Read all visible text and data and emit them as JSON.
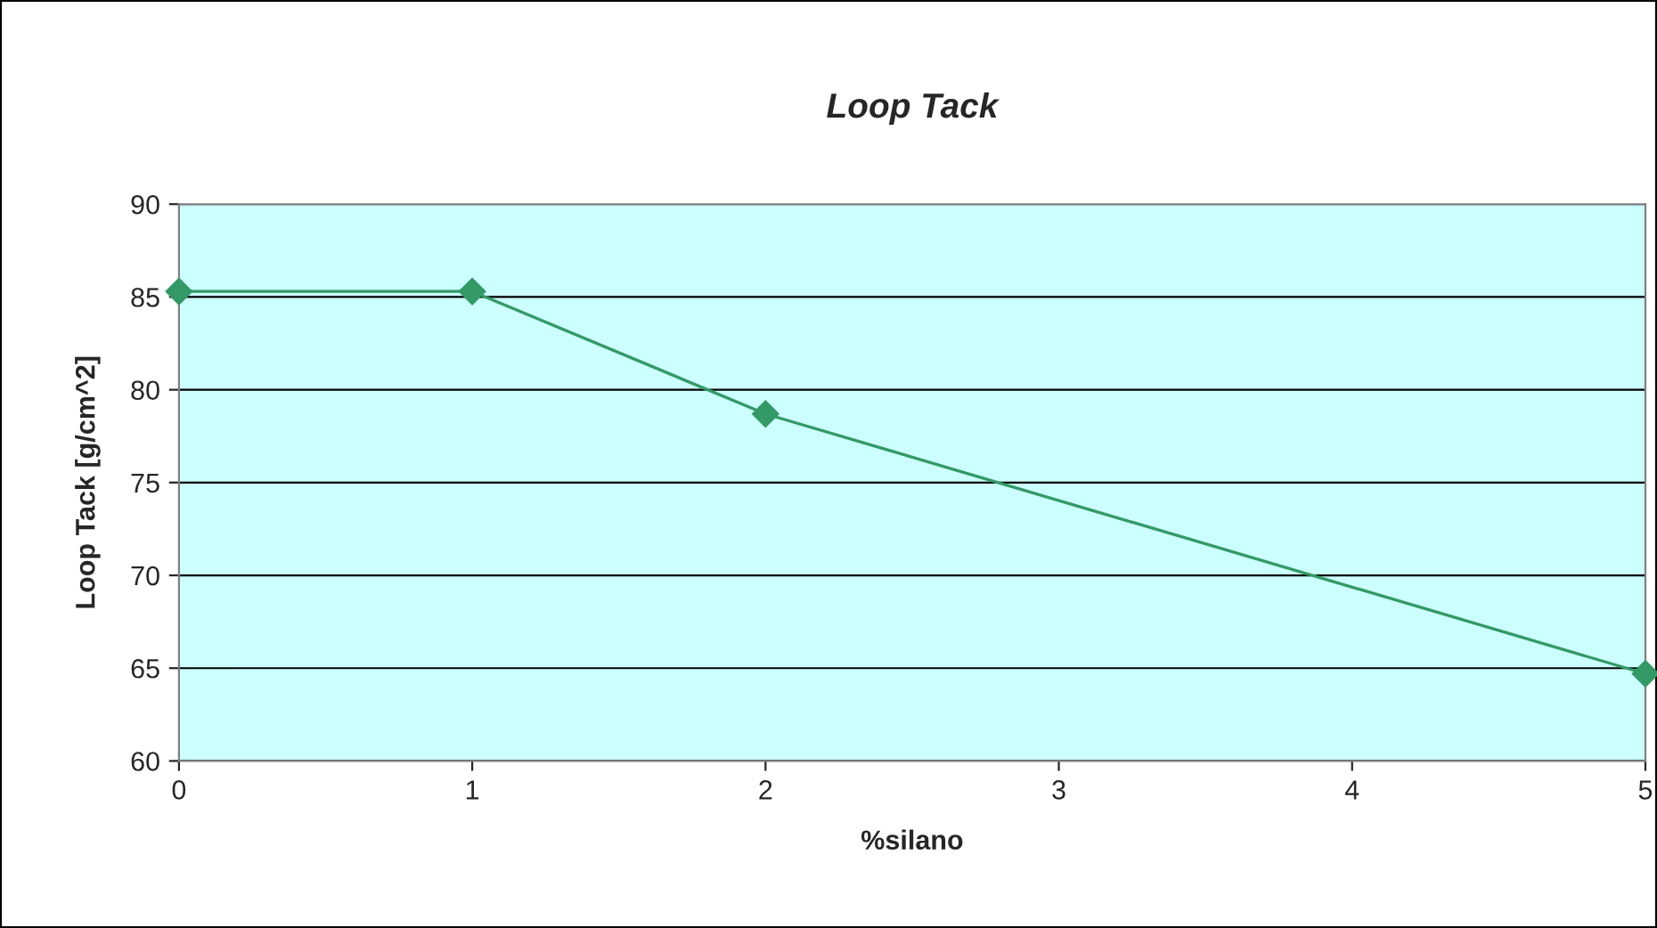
{
  "chart_data": {
    "type": "line",
    "title": "Loop Tack",
    "xlabel": "%silano",
    "ylabel": "Loop Tack [g/cm^2]",
    "x": [
      0,
      1,
      2,
      5
    ],
    "series": [
      {
        "color": "#339966",
        "values": [
          85.3,
          85.3,
          78.7,
          64.7
        ]
      }
    ],
    "xlim": [
      0,
      5
    ],
    "xticks": [
      0,
      1,
      2,
      3,
      4,
      5
    ],
    "ylim": [
      60,
      90
    ],
    "yticks": [
      60,
      65,
      70,
      75,
      80,
      85,
      90
    ],
    "grid": "y",
    "marker": "diamond",
    "line_style": "solid",
    "legend": false
  }
}
